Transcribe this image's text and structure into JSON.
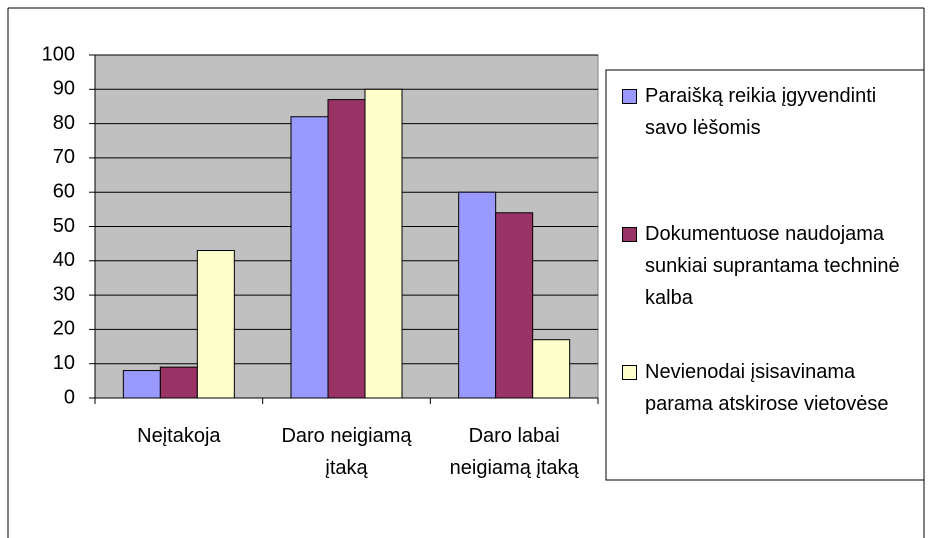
{
  "chart_data": {
    "type": "bar",
    "categories": [
      "Neįtakoja",
      "Daro neigiamą įtaką",
      "Daro labai neigiamą įtaką"
    ],
    "series": [
      {
        "name": "Paraišką reikia įgyvendinti savo lėšomis",
        "color": "#9999ff",
        "values": [
          8,
          82,
          60
        ]
      },
      {
        "name": "Dokumentuose naudojama sunkiai suprantama techninė kalba",
        "color": "#993366",
        "values": [
          9,
          87,
          54
        ]
      },
      {
        "name": "Nevienodai įsisavinama parama atskirose vietovėse",
        "color": "#ffffcc",
        "values": [
          43,
          90,
          17
        ]
      }
    ],
    "ylim": [
      0,
      100
    ],
    "yticks": [
      0,
      10,
      20,
      30,
      40,
      50,
      60,
      70,
      80,
      90,
      100
    ],
    "grid": true,
    "plot_background": "#c0c0c0",
    "legend": "right"
  }
}
